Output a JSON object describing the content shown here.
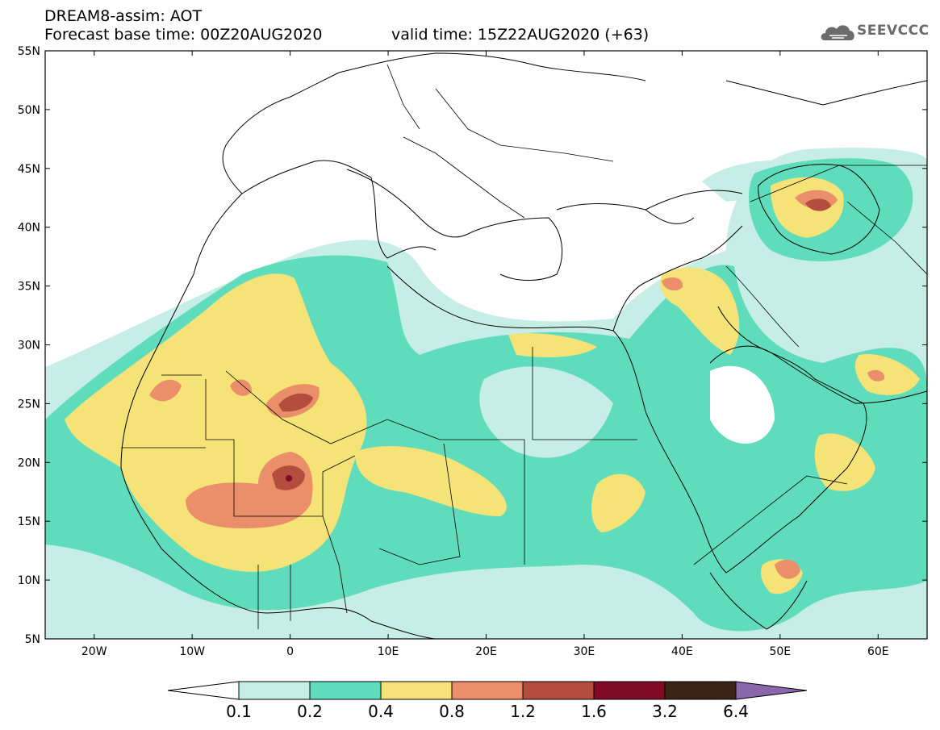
{
  "title": "DREAM8-assim: AOT",
  "base_time": "Forecast base time: 00Z20AUG2020",
  "valid_time": "valid time: 15Z22AUG2020 (+63)",
  "logo_text": "SEEVCCC",
  "map": {
    "lon_range": [
      -25,
      65
    ],
    "lat_range": [
      5,
      55
    ],
    "x_ticks": [
      {
        "lon": -20,
        "label": "20W"
      },
      {
        "lon": -10,
        "label": "10W"
      },
      {
        "lon": 0,
        "label": "0"
      },
      {
        "lon": 10,
        "label": "10E"
      },
      {
        "lon": 20,
        "label": "20E"
      },
      {
        "lon": 30,
        "label": "30E"
      },
      {
        "lon": 40,
        "label": "40E"
      },
      {
        "lon": 50,
        "label": "50E"
      },
      {
        "lon": 60,
        "label": "60E"
      }
    ],
    "y_ticks": [
      {
        "lat": 5,
        "label": "5N"
      },
      {
        "lat": 10,
        "label": "10N"
      },
      {
        "lat": 15,
        "label": "15N"
      },
      {
        "lat": 20,
        "label": "20N"
      },
      {
        "lat": 25,
        "label": "25N"
      },
      {
        "lat": 30,
        "label": "30N"
      },
      {
        "lat": 35,
        "label": "35N"
      },
      {
        "lat": 40,
        "label": "40N"
      },
      {
        "lat": 45,
        "label": "45N"
      },
      {
        "lat": 50,
        "label": "50N"
      },
      {
        "lat": 55,
        "label": "55N"
      }
    ]
  },
  "colorbar": {
    "thresholds": [
      "0.1",
      "0.2",
      "0.4",
      "0.8",
      "1.2",
      "1.6",
      "3.2",
      "6.4"
    ],
    "colors": [
      "#ffffff",
      "#c6eee6",
      "#5fdcbc",
      "#f5e378",
      "#eb8f6a",
      "#b34e3f",
      "#810a26",
      "#3c2414",
      "#8a66aa"
    ]
  },
  "icons": [
    "cloud-logo-icon"
  ]
}
